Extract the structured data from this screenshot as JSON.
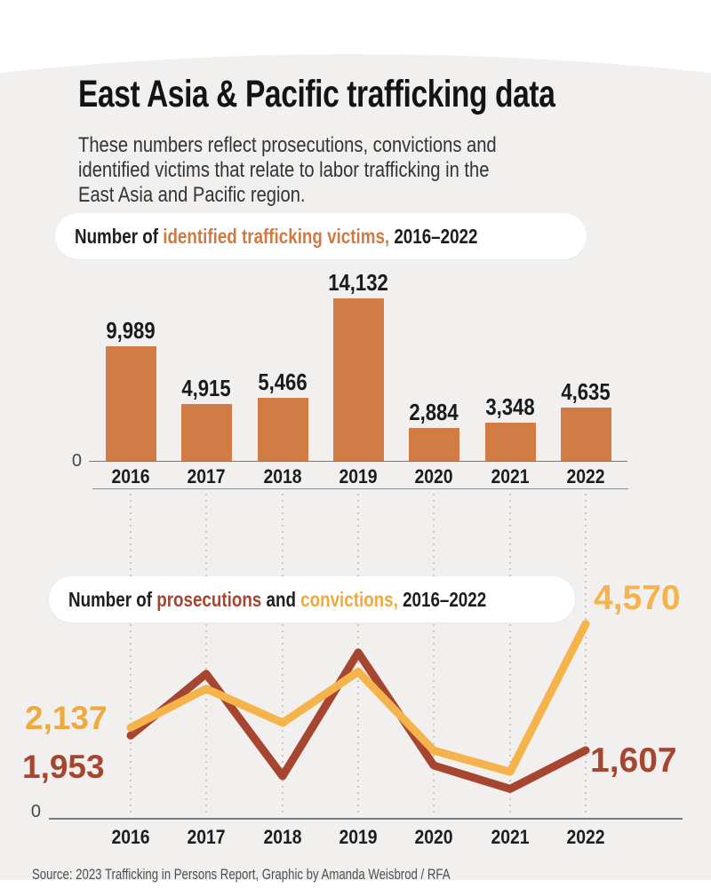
{
  "page": {
    "title": "East Asia & Pacific trafficking data",
    "subtitle_lines": [
      "These numbers reflect prosecutions, convictions and",
      "identified victims that relate to labor trafficking in the",
      "East Asia and Pacific region."
    ],
    "source": "Source: 2023 Trafficking in Persons Report, Graphic by Amanda Weisbrod / RFA"
  },
  "headings": {
    "chart1": {
      "prefix": "Number of ",
      "highlight": "identified trafficking victims,",
      "suffix": " 2016–2022"
    },
    "chart2": {
      "prefix": "Number of ",
      "prosecutions": "prosecutions",
      "mid": " and ",
      "convictions": "convictions,",
      "suffix": " 2016–2022"
    }
  },
  "colors": {
    "background": "#f1f0ee",
    "bar_orange": "#d07c44",
    "accent_orange": "#cf7a43",
    "gold": "#f5b34b",
    "brick_red": "#a64530",
    "axis_gray": "#7a7a7a",
    "dotted_gray": "#cbc8c4"
  },
  "chart_data": [
    {
      "type": "bar",
      "title": "Number of identified trafficking victims, 2016–2022",
      "categories": [
        "2016",
        "2017",
        "2018",
        "2019",
        "2020",
        "2021",
        "2022"
      ],
      "values": [
        9989,
        4915,
        5466,
        14132,
        2884,
        3348,
        4635
      ],
      "value_labels": [
        "9,989",
        "4,915",
        "5,466",
        "14,132",
        "2,884",
        "3,348",
        "4,635"
      ],
      "y_baseline_label": "0",
      "ylim": [
        0,
        15000
      ],
      "grid": false,
      "bar_color": "#d07c44"
    },
    {
      "type": "line",
      "title": "Number of prosecutions and convictions, 2016–2022",
      "categories": [
        "2016",
        "2017",
        "2018",
        "2019",
        "2020",
        "2021",
        "2022"
      ],
      "series": [
        {
          "name": "prosecutions",
          "color": "#a64530",
          "values": [
            1953,
            3400,
            1000,
            3900,
            1250,
            700,
            1607
          ],
          "start_label": "1,953",
          "end_label": "1,607"
        },
        {
          "name": "convictions",
          "color": "#f5b34b",
          "values": [
            2137,
            3050,
            2250,
            3450,
            1600,
            1100,
            4570
          ],
          "start_label": "2,137",
          "end_label": "4,570"
        }
      ],
      "y_baseline_label": "0",
      "ylim": [
        0,
        5000
      ],
      "grid": false,
      "note": "Only 2016 and 2022 values are labeled in the graphic; intermediate values are estimated from the plotted line positions."
    }
  ]
}
